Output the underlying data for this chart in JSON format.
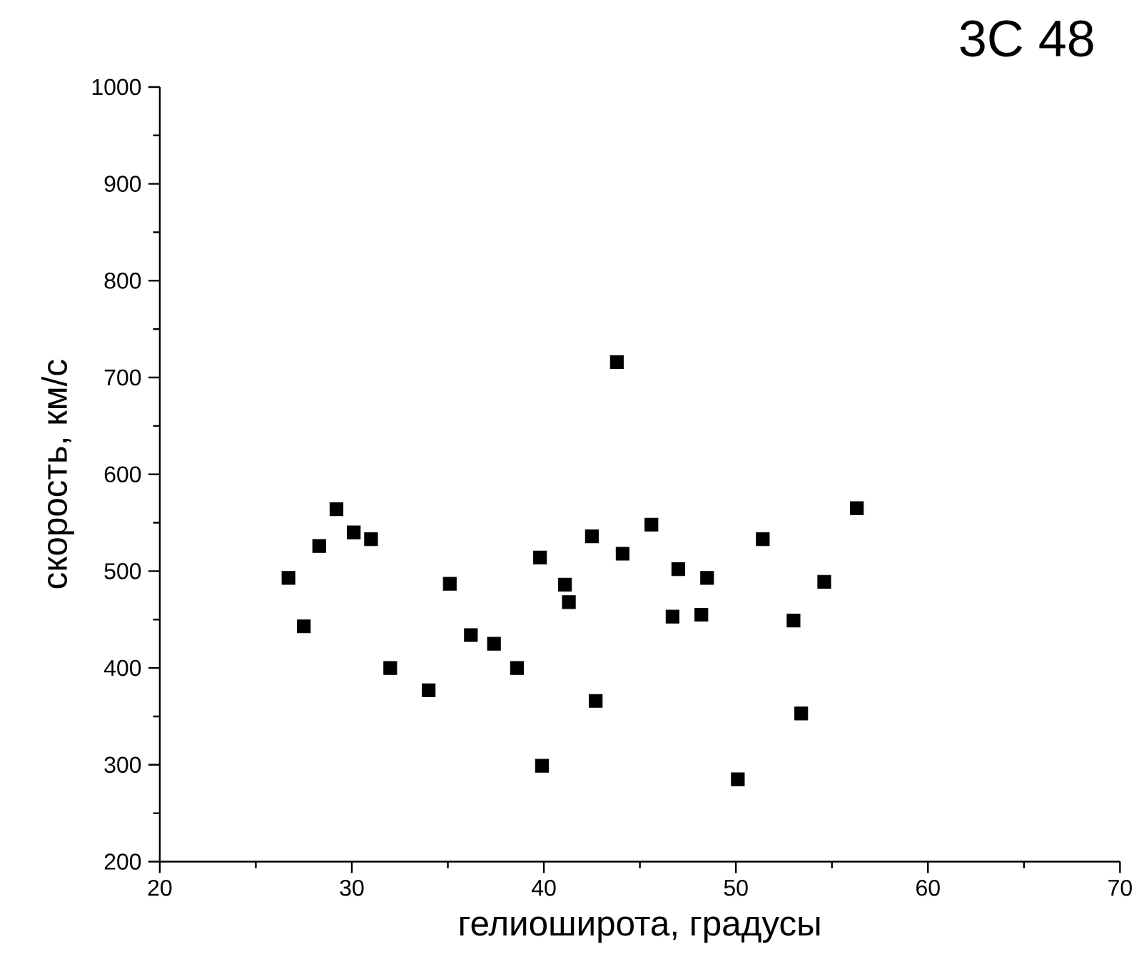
{
  "chart_data": {
    "type": "scatter",
    "title": "3C 48",
    "xlabel": "гелиоширота, градусы",
    "ylabel": "скорость, км/с",
    "x": [
      26.7,
      27.5,
      28.3,
      29.2,
      30.1,
      31.0,
      32.0,
      34.0,
      35.1,
      36.2,
      37.4,
      38.6,
      39.8,
      39.9,
      41.1,
      41.3,
      42.5,
      42.7,
      43.8,
      44.1,
      45.6,
      46.7,
      47.0,
      48.2,
      48.5,
      50.1,
      51.4,
      53.0,
      53.4,
      54.6,
      56.3
    ],
    "values": [
      493,
      443,
      526,
      564,
      540,
      533,
      400,
      377,
      487,
      434,
      425,
      400,
      514,
      299,
      486,
      468,
      536,
      366,
      716,
      518,
      548,
      453,
      502,
      455,
      493,
      285,
      533,
      449,
      353,
      489,
      565
    ],
    "color": "#000000",
    "marker": "square",
    "xlim": [
      20,
      70
    ],
    "xticks": [
      20,
      30,
      40,
      50,
      60,
      70
    ],
    "ylim": [
      200,
      1000
    ],
    "yticks": [
      200,
      300,
      400,
      500,
      600,
      700,
      800,
      900,
      1000
    ],
    "grid": false
  }
}
